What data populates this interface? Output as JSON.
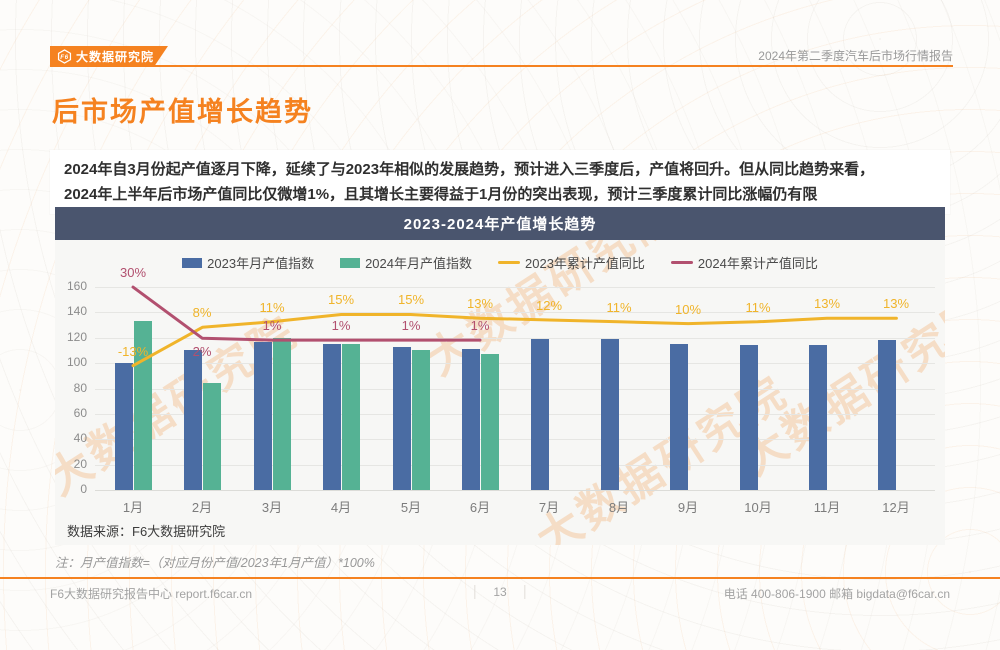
{
  "header": {
    "logo_text": "大数据研究院",
    "logo_mark": "F6",
    "report_label": "2024年第二季度汽车后市场行情报告"
  },
  "page": {
    "title": "后市场产值增长趋势",
    "summary_line1": "2024年自3月份起产值逐月下降，延续了与2023年相似的发展趋势，预计进入三季度后，产值将回升。但从同比趋势来看，",
    "summary_line2": "2024年上半年后市场产值同比仅微增1%，且其增长主要得益于1月份的突出表现，预计三季度累计同比涨幅仍有限"
  },
  "chart": {
    "title": "2023-2024年产值增长趋势",
    "source": "数据来源：F6大数据研究院"
  },
  "note": "注：月产值指数=（对应月份产值/2023年1月产值）*100%",
  "footer": {
    "left": "F6大数据研究报告中心 report.f6car.cn",
    "page_number": "13",
    "right": "电话 400-806-1900  邮箱 bigdata@f6car.cn"
  },
  "watermark_text": "大数据研究院",
  "colors": {
    "accent": "#f58220",
    "chart_title_bar": "#4a556e",
    "bar_2023": "#4a6ca3",
    "bar_2024": "#55b294",
    "line_2023": "#f0b42a",
    "line_2024": "#b2506f"
  },
  "chart_data": {
    "type": "bar",
    "subtype": "bar+line combo",
    "title": "2023-2024年产值增长趋势",
    "categories": [
      "1月",
      "2月",
      "3月",
      "4月",
      "5月",
      "6月",
      "7月",
      "8月",
      "9月",
      "10月",
      "11月",
      "12月"
    ],
    "series": [
      {
        "name": "2023年月产值指数",
        "type": "bar",
        "color": "#4a6ca3",
        "values": [
          100,
          110,
          117,
          115,
          113,
          111,
          119,
          119,
          115,
          114,
          114,
          118
        ]
      },
      {
        "name": "2024年月产值指数",
        "type": "bar",
        "color": "#55b294",
        "values": [
          133,
          84,
          120,
          115,
          110,
          107,
          null,
          null,
          null,
          null,
          null,
          null
        ]
      },
      {
        "name": "2023年累计产值同比",
        "type": "line",
        "color": "#f0b42a",
        "unit": "%",
        "values": [
          -13,
          8,
          11,
          15,
          15,
          13,
          12,
          11,
          10,
          11,
          13,
          13
        ]
      },
      {
        "name": "2024年累计产值同比",
        "type": "line",
        "color": "#b2506f",
        "unit": "%",
        "values": [
          30,
          2,
          1,
          1,
          1,
          1,
          null,
          null,
          null,
          null,
          null,
          null
        ]
      }
    ],
    "xlabel": "",
    "ylabel": "",
    "ylim": [
      0,
      160
    ],
    "ytick_step": 20,
    "grid": true,
    "legend_position": "top"
  }
}
